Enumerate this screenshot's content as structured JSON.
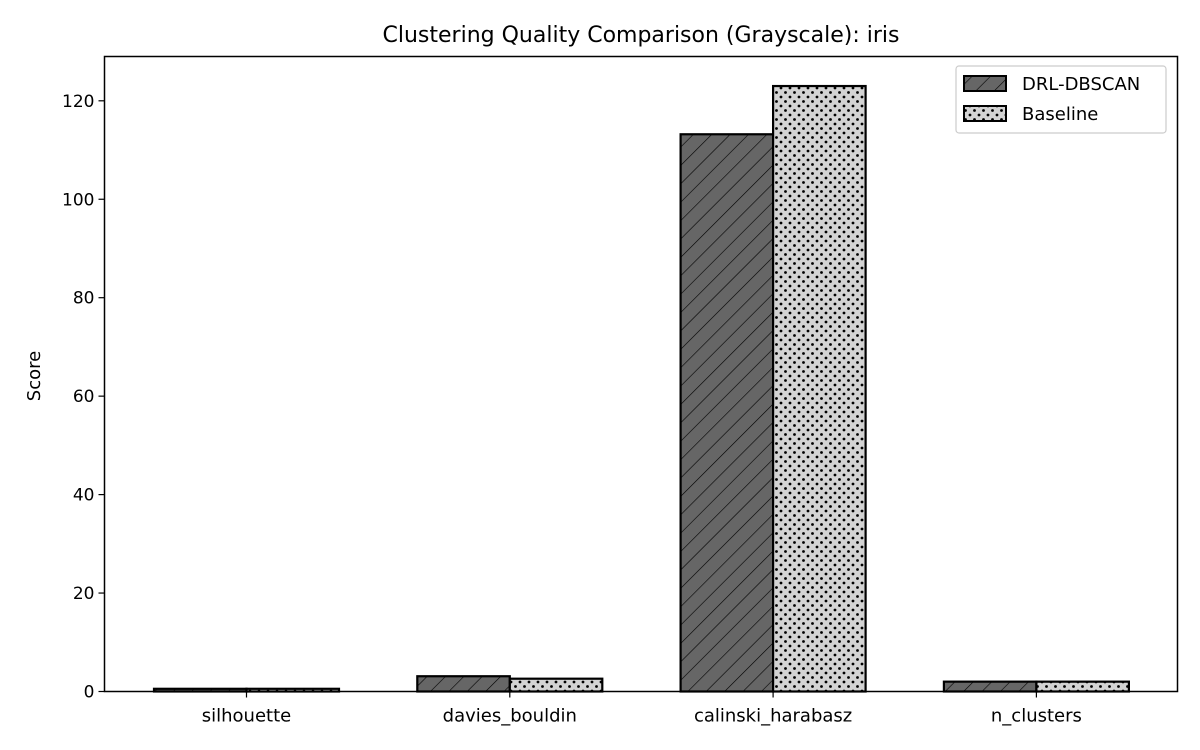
{
  "chart_data": {
    "type": "bar",
    "title": "Clustering Quality Comparison (Grayscale): iris",
    "xlabel": "",
    "ylabel": "Score",
    "categories": [
      "silhouette",
      "davies_bouldin",
      "calinski_harabasz",
      "n_clusters"
    ],
    "series": [
      {
        "name": "DRL-DBSCAN",
        "values": [
          0.55,
          3.1,
          113.2,
          2
        ],
        "color": "#666666",
        "pattern": "hatch"
      },
      {
        "name": "Baseline",
        "values": [
          0.55,
          2.6,
          123.0,
          2
        ],
        "color": "#d3d3d3",
        "pattern": "dots"
      }
    ],
    "ylim": [
      0,
      129
    ],
    "yticks": [
      0,
      20,
      40,
      60,
      80,
      100,
      120
    ],
    "grid": false,
    "legend_position": "top-right"
  }
}
